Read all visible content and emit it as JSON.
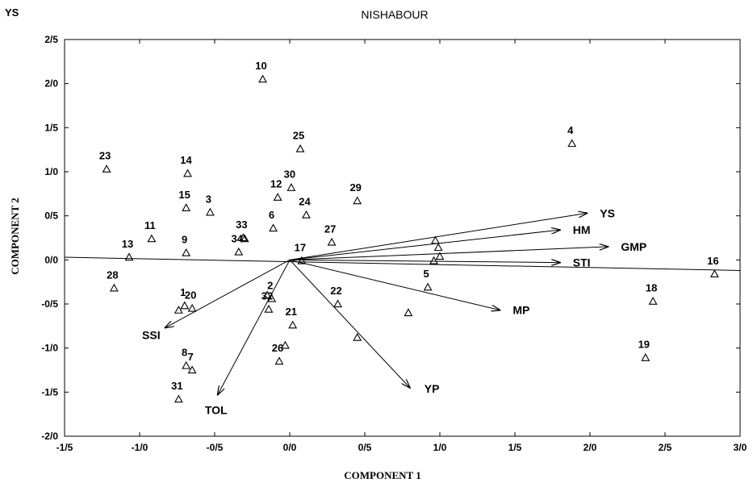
{
  "corner_label": "YS",
  "chart_data": {
    "type": "scatter",
    "title": "NISHABOUR",
    "xlabel": "COMPONENT 1",
    "ylabel": "COMPONENT 2",
    "xlim": [
      -1.5,
      3.0
    ],
    "ylim": [
      -2.0,
      2.5
    ],
    "x_ticks": [
      -1.5,
      -1.0,
      -0.5,
      0.0,
      0.5,
      1.0,
      1.5,
      2.0,
      2.5,
      3.0
    ],
    "x_tick_labels": [
      "-1/5",
      "-1/0",
      "-0/5",
      "0/0",
      "0/5",
      "1/0",
      "1/5",
      "2/0",
      "2/5",
      "3/0"
    ],
    "y_ticks": [
      -2.0,
      -1.5,
      -1.0,
      -0.5,
      0.0,
      0.5,
      1.0,
      1.5,
      2.0,
      2.5
    ],
    "y_tick_labels": [
      "-2/0",
      "-1/5",
      "-1/0",
      "-0/5",
      "0/0",
      "0/5",
      "1/0",
      "1/5",
      "2/0",
      "2/5"
    ],
    "grid": false,
    "marker": "triangle",
    "points": [
      {
        "label": "1",
        "x": -0.7,
        "y": -0.52
      },
      {
        "label": "2",
        "x": -0.12,
        "y": -0.44
      },
      {
        "label": "3",
        "x": -0.53,
        "y": 0.54
      },
      {
        "label": "4",
        "x": 1.88,
        "y": 1.32
      },
      {
        "label": "5",
        "x": 0.92,
        "y": -0.31
      },
      {
        "label": "6",
        "x": -0.11,
        "y": 0.36
      },
      {
        "label": "7",
        "x": -0.65,
        "y": -1.25
      },
      {
        "label": "8",
        "x": -0.69,
        "y": -1.2
      },
      {
        "label": "9",
        "x": -0.69,
        "y": 0.08
      },
      {
        "label": "10",
        "x": -0.18,
        "y": 2.05
      },
      {
        "label": "11",
        "x": -0.92,
        "y": 0.24
      },
      {
        "label": "12",
        "x": -0.08,
        "y": 0.71
      },
      {
        "label": "13",
        "x": -1.07,
        "y": 0.03
      },
      {
        "label": "14",
        "x": -0.68,
        "y": 0.98
      },
      {
        "label": "15",
        "x": -0.69,
        "y": 0.59
      },
      {
        "label": "16",
        "x": 2.83,
        "y": -0.16
      },
      {
        "label": "17",
        "x": 0.08,
        "y": -0.01
      },
      {
        "label": "18",
        "x": 2.42,
        "y": -0.47
      },
      {
        "label": "19",
        "x": 2.37,
        "y": -1.11
      },
      {
        "label": "20",
        "x": -0.65,
        "y": -0.55
      },
      {
        "label": "21",
        "x": 0.02,
        "y": -0.74
      },
      {
        "label": "22",
        "x": 0.32,
        "y": -0.5
      },
      {
        "label": "23",
        "x": -1.22,
        "y": 1.03
      },
      {
        "label": "24",
        "x": 0.11,
        "y": 0.51
      },
      {
        "label": "25",
        "x": 0.07,
        "y": 1.26
      },
      {
        "label": "26",
        "x": -0.07,
        "y": -1.15
      },
      {
        "label": "27",
        "x": 0.28,
        "y": 0.2
      },
      {
        "label": "28",
        "x": -1.17,
        "y": -0.32
      },
      {
        "label": "29",
        "x": 0.45,
        "y": 0.67
      },
      {
        "label": "30",
        "x": 0.01,
        "y": 0.82
      },
      {
        "label": "31",
        "x": -0.74,
        "y": -1.58
      },
      {
        "label": "32",
        "x": -0.14,
        "y": -0.56
      },
      {
        "label": "33",
        "x": -0.31,
        "y": 0.25
      },
      {
        "label": "34",
        "x": -0.34,
        "y": 0.09
      },
      {
        "label": "",
        "x": -0.74,
        "y": -0.57
      },
      {
        "label": "",
        "x": -0.3,
        "y": 0.24
      },
      {
        "label": "",
        "x": -0.15,
        "y": -0.4
      },
      {
        "label": "",
        "x": -0.03,
        "y": -0.97
      },
      {
        "label": "",
        "x": 0.45,
        "y": -0.88
      },
      {
        "label": "",
        "x": 0.79,
        "y": -0.6
      },
      {
        "label": "",
        "x": 0.97,
        "y": 0.22
      },
      {
        "label": "",
        "x": 0.99,
        "y": 0.14
      },
      {
        "label": "",
        "x": 1.0,
        "y": 0.04
      },
      {
        "label": "",
        "x": 0.96,
        "y": -0.01
      }
    ],
    "vectors": [
      {
        "label": "YS",
        "x": 1.98,
        "y": 0.53
      },
      {
        "label": "HM",
        "x": 1.8,
        "y": 0.34
      },
      {
        "label": "GMP",
        "x": 2.12,
        "y": 0.15
      },
      {
        "label": "STI",
        "x": 1.8,
        "y": -0.03
      },
      {
        "label": "MP",
        "x": 1.4,
        "y": -0.57
      },
      {
        "label": "YP",
        "x": 0.8,
        "y": -1.45
      },
      {
        "label": "TOL",
        "x": -0.48,
        "y": -1.53
      },
      {
        "label": "SSI",
        "x": -0.83,
        "y": -0.77
      }
    ],
    "reference_line": {
      "x1": -1.5,
      "y1": 0.03,
      "x2": 3.0,
      "y2": -0.12
    }
  }
}
